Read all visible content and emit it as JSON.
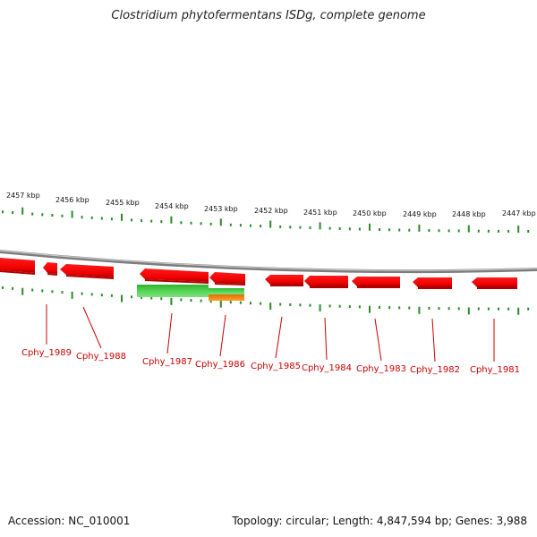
{
  "title": "Clostridium phytofermentans ISDg, complete genome",
  "footer": {
    "accession": "Accession: NC_010001",
    "summary": "Topology: circular; Length: 4,847,594 bp; Genes: 3,988"
  },
  "colors": {
    "gene": "#ff0000",
    "gene_label": "#cc0000",
    "tick": "#2a8a2a",
    "backbone": "#8a8a8a",
    "feature_green": "#3dc23d",
    "feature_orange": "#f07f00"
  },
  "ruler": {
    "unit": "kbp",
    "labels": [
      "2457 kbp",
      "2456 kbp",
      "2455 kbp",
      "2454 kbp",
      "2453 kbp",
      "2452 kbp",
      "2451 kbp",
      "2450 kbp",
      "2449 kbp",
      "2448 kbp",
      "2447 kbp"
    ]
  },
  "genes": [
    {
      "name": "Cphy_1989",
      "label": "Cphy_1989"
    },
    {
      "name": "Cphy_1988",
      "label": "Cphy_1988"
    },
    {
      "name": "Cphy_1987",
      "label": "Cphy_1987"
    },
    {
      "name": "Cphy_1986",
      "label": "Cphy_1986"
    },
    {
      "name": "Cphy_1985",
      "label": "Cphy_1985"
    },
    {
      "name": "Cphy_1984",
      "label": "Cphy_1984"
    },
    {
      "name": "Cphy_1983",
      "label": "Cphy_1983"
    },
    {
      "name": "Cphy_1982",
      "label": "Cphy_1982"
    },
    {
      "name": "Cphy_1981",
      "label": "Cphy_1981"
    }
  ]
}
